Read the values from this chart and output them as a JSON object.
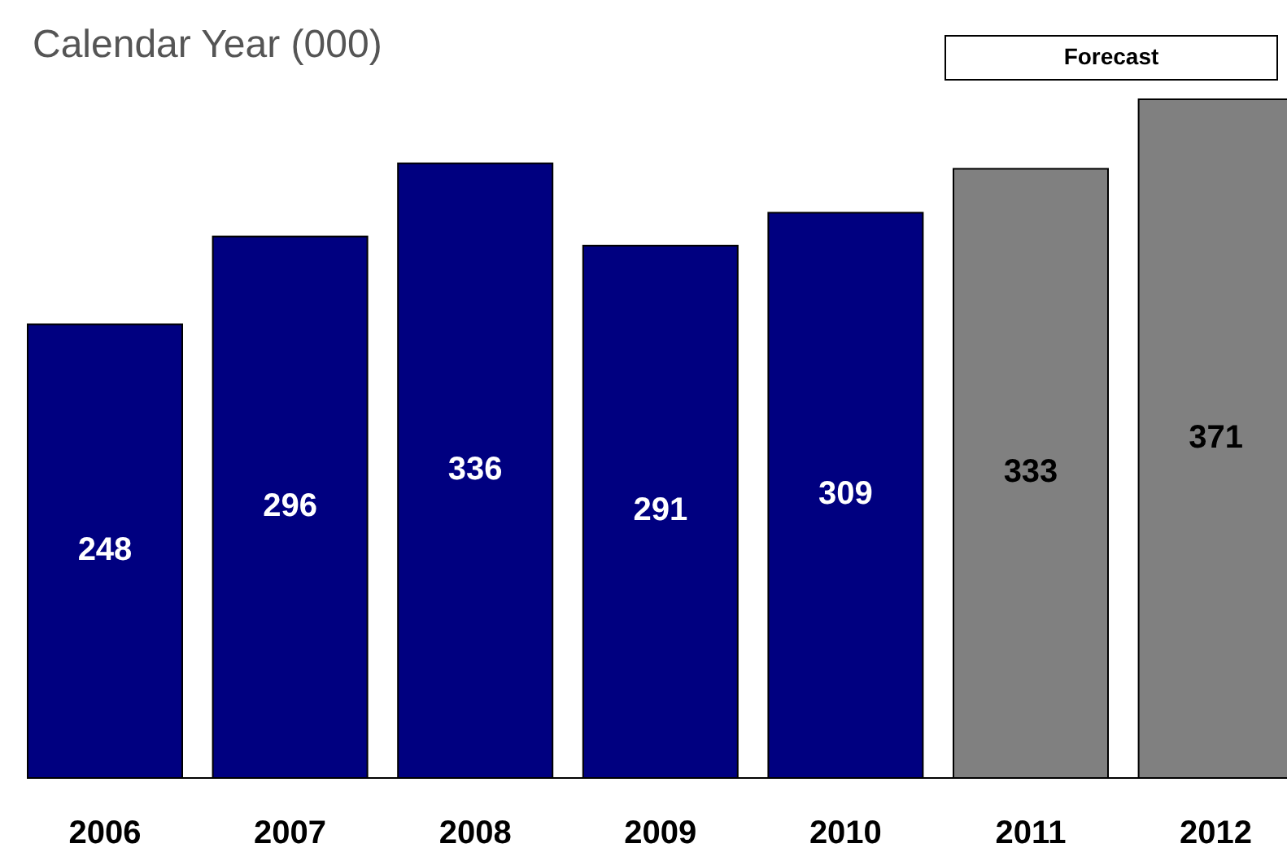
{
  "chart_data": {
    "type": "bar",
    "title": "Calendar Year (000)",
    "categories": [
      "2006",
      "2007",
      "2008",
      "2009",
      "2010",
      "2011",
      "2012"
    ],
    "values": [
      248,
      296,
      336,
      291,
      309,
      333,
      371
    ],
    "colors": [
      "#000080",
      "#000080",
      "#000080",
      "#000080",
      "#000080",
      "#808080",
      "#808080"
    ],
    "data_labels": true,
    "annotations": [
      "Forecast"
    ]
  }
}
